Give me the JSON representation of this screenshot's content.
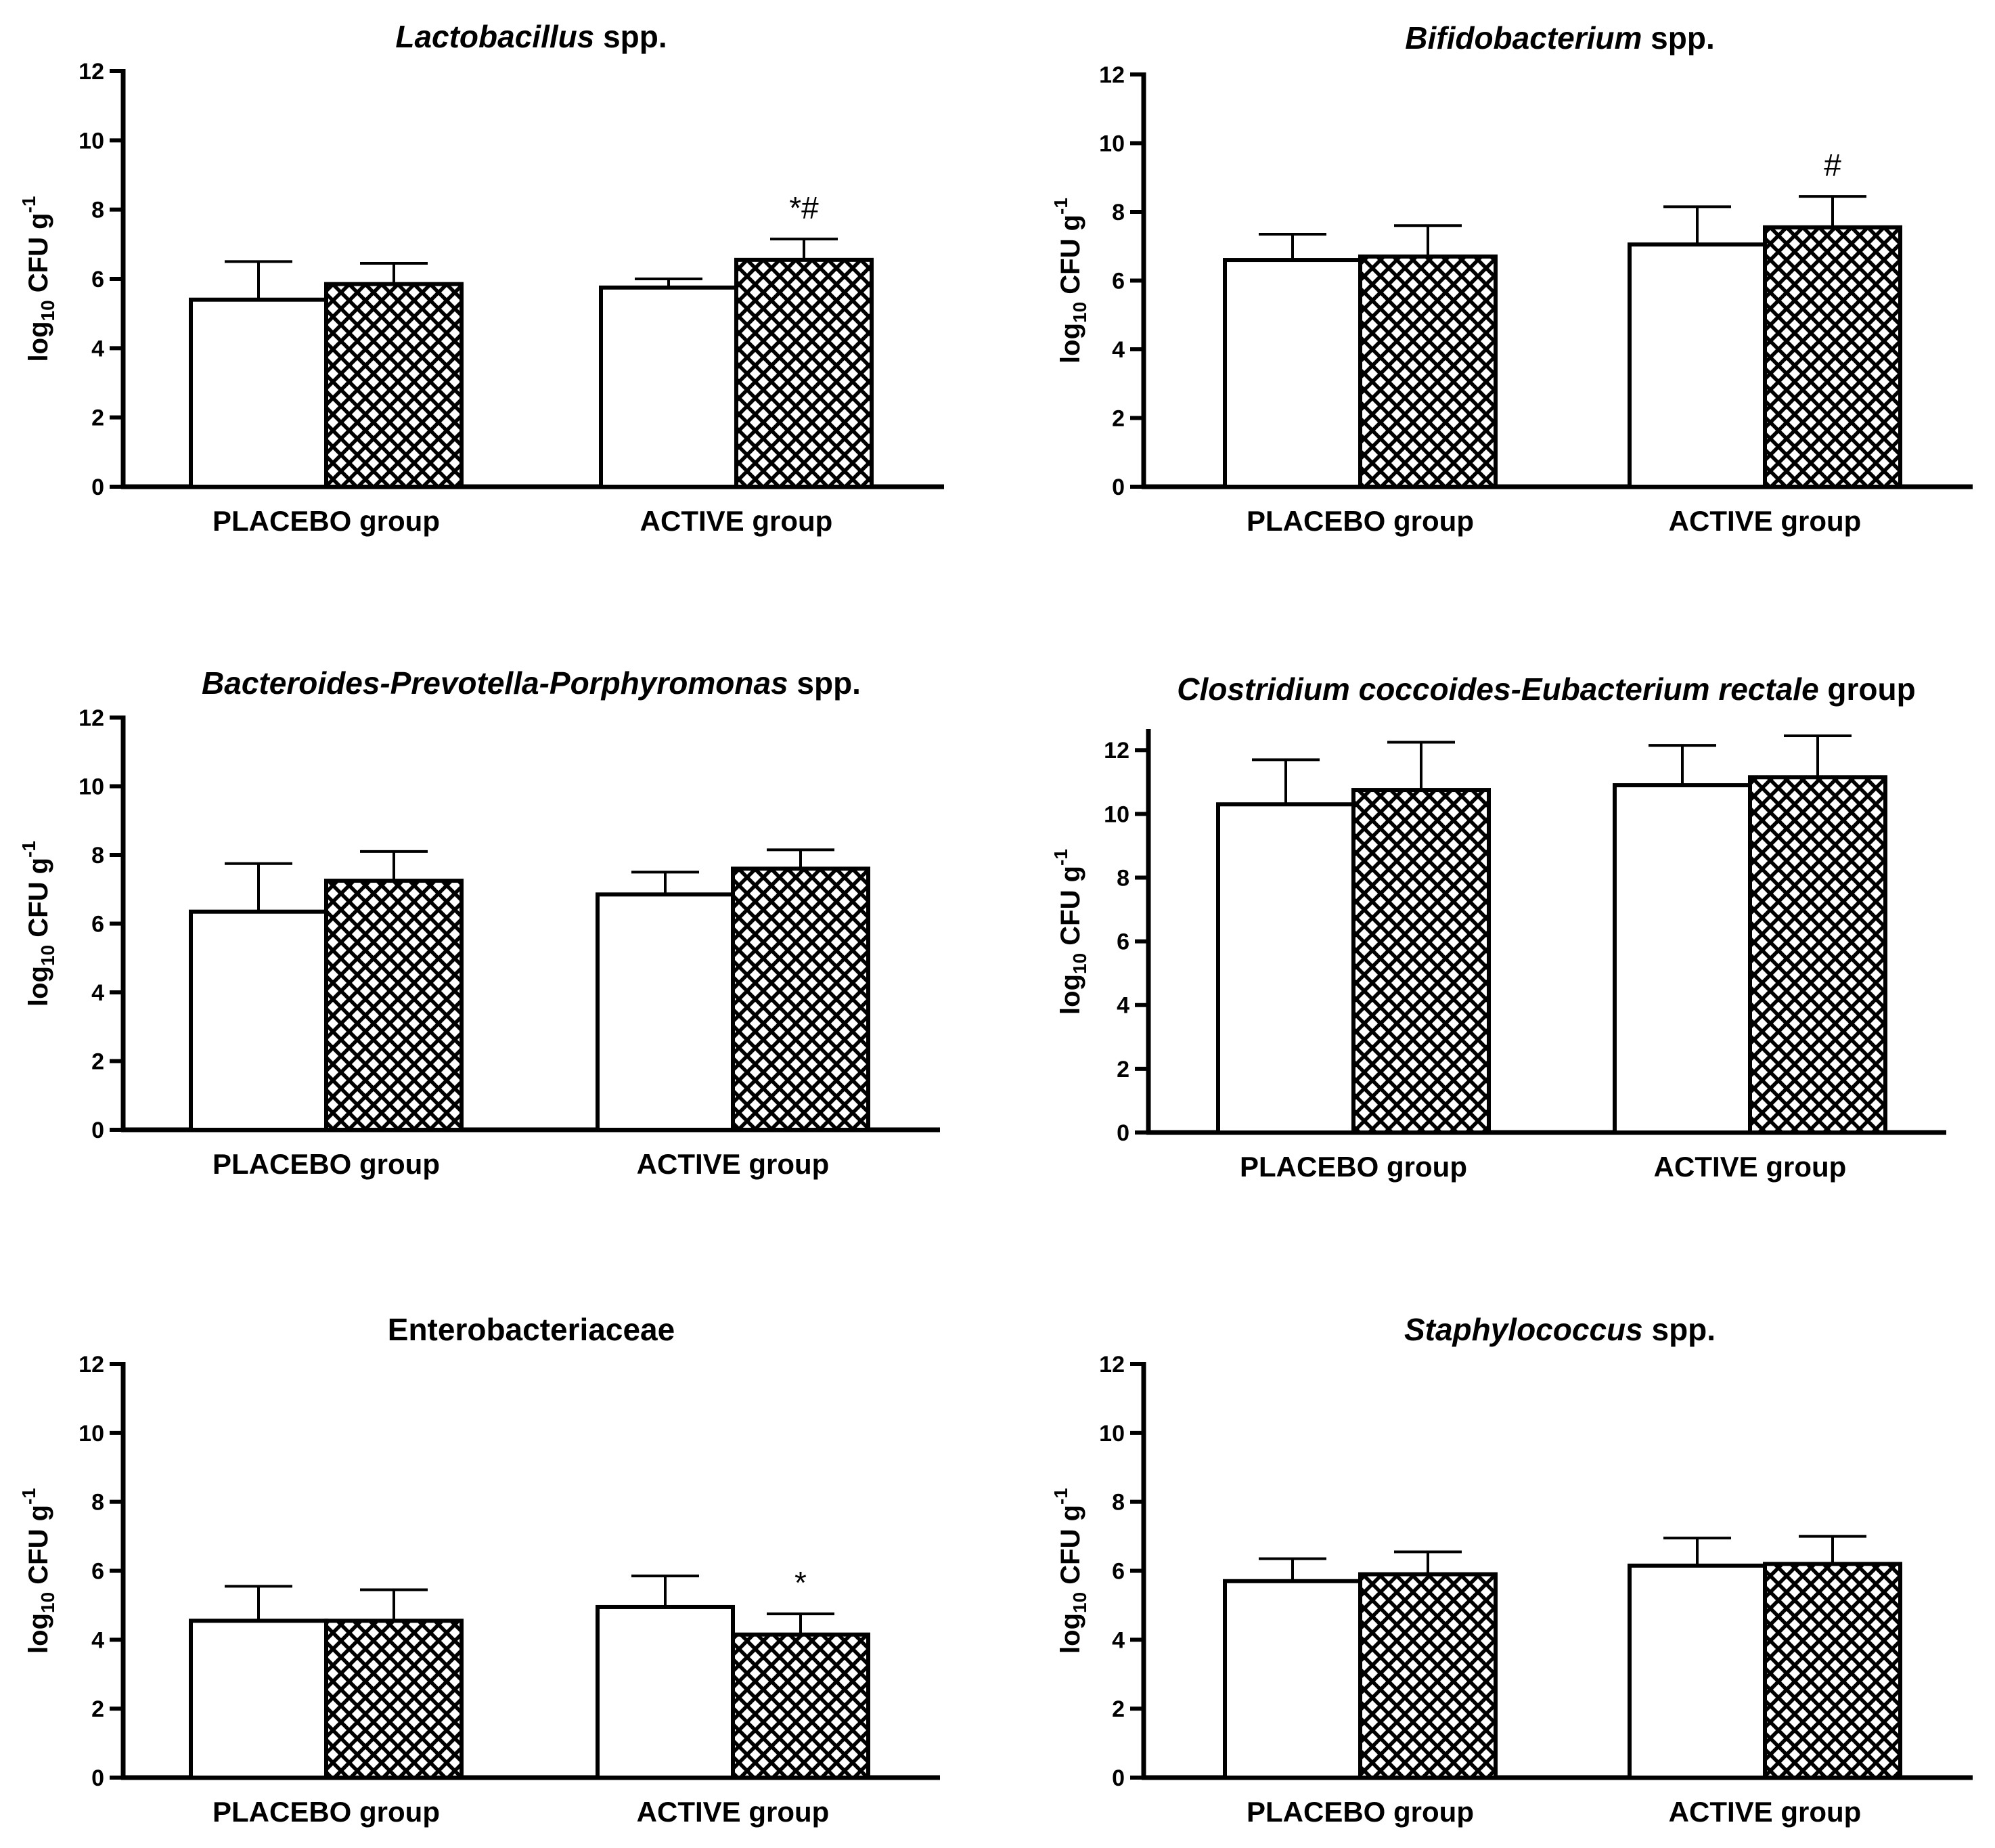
{
  "figure": {
    "legend_shown": false,
    "series_styles": [
      {
        "series_index": 0,
        "fill": "#ffffff",
        "pattern": "none"
      },
      {
        "series_index": 1,
        "fill": "#ffffff",
        "pattern": "crosshatch"
      }
    ]
  },
  "chart_data": [
    {
      "type": "bar",
      "title_parts": [
        {
          "text": "Lactobacillus",
          "italic": true
        },
        {
          "text": " spp.",
          "italic": false
        }
      ],
      "ylabel": {
        "main": "log",
        "sub": "10",
        "rest": " CFU g",
        "sup": "-1"
      },
      "ylim": [
        0,
        12
      ],
      "yticks": [
        0,
        2,
        4,
        6,
        8,
        10,
        12
      ],
      "categories": [
        "PLACEBO group",
        "ACTIVE group"
      ],
      "series": [
        {
          "name": "series-1-open",
          "values": [
            5.4,
            5.75
          ],
          "errors": [
            1.1,
            0.25
          ]
        },
        {
          "name": "series-2-crosshatch",
          "values": [
            5.85,
            6.55
          ],
          "errors": [
            0.6,
            0.6
          ]
        }
      ],
      "annotations": [
        {
          "category": 1,
          "series": 1,
          "text": "*#"
        }
      ]
    },
    {
      "type": "bar",
      "title_parts": [
        {
          "text": "Bifidobacterium",
          "italic": true
        },
        {
          "text": " spp.",
          "italic": false
        }
      ],
      "ylabel": {
        "main": "log",
        "sub": "10",
        "rest": " CFU g",
        "sup": "-1"
      },
      "ylim": [
        0,
        12
      ],
      "yticks": [
        0,
        2,
        4,
        6,
        8,
        10,
        12
      ],
      "categories": [
        "PLACEBO group",
        "ACTIVE group"
      ],
      "series": [
        {
          "name": "series-1-open",
          "values": [
            6.6,
            7.05
          ],
          "errors": [
            0.75,
            1.1
          ]
        },
        {
          "name": "series-2-crosshatch",
          "values": [
            6.7,
            7.55
          ],
          "errors": [
            0.9,
            0.9
          ]
        }
      ],
      "annotations": [
        {
          "category": 1,
          "series": 1,
          "text": "#"
        }
      ]
    },
    {
      "type": "bar",
      "title_parts": [
        {
          "text": "Bacteroides-Prevotella-Porphyromonas",
          "italic": true
        },
        {
          "text": " spp.",
          "italic": false
        }
      ],
      "ylabel": {
        "main": "log",
        "sub": "10",
        "rest": " CFU g",
        "sup": "-1"
      },
      "ylim": [
        0,
        12
      ],
      "yticks": [
        0,
        2,
        4,
        6,
        8,
        10,
        12
      ],
      "categories": [
        "PLACEBO group",
        "ACTIVE group"
      ],
      "series": [
        {
          "name": "series-1-open",
          "values": [
            6.35,
            6.85
          ],
          "errors": [
            1.4,
            0.65
          ]
        },
        {
          "name": "series-2-crosshatch",
          "values": [
            7.25,
            7.6
          ],
          "errors": [
            0.85,
            0.55
          ]
        }
      ],
      "annotations": []
    },
    {
      "type": "bar",
      "title_parts": [
        {
          "text": "Clostridium coccoides-Eubacterium rectale",
          "italic": true
        },
        {
          "text": " group",
          "italic": false
        }
      ],
      "ylabel": {
        "main": "log",
        "sub": "10",
        "rest": " CFU g",
        "sup": "-1"
      },
      "ylim": [
        0,
        12.6
      ],
      "yticks": [
        0,
        2,
        4,
        6,
        8,
        10,
        12
      ],
      "categories": [
        "PLACEBO group",
        "ACTIVE group"
      ],
      "series": [
        {
          "name": "series-1-open",
          "values": [
            10.3,
            10.9
          ],
          "errors": [
            1.4,
            1.25
          ]
        },
        {
          "name": "series-2-crosshatch",
          "values": [
            10.75,
            11.15
          ],
          "errors": [
            1.5,
            1.3
          ]
        }
      ],
      "annotations": []
    },
    {
      "type": "bar",
      "title_parts": [
        {
          "text": "Enterobacteriaceae",
          "italic": false
        }
      ],
      "ylabel": {
        "main": "log",
        "sub": "10",
        "rest": " CFU g",
        "sup": "-1"
      },
      "ylim": [
        0,
        12
      ],
      "yticks": [
        0,
        2,
        4,
        6,
        8,
        10,
        12
      ],
      "categories": [
        "PLACEBO group",
        "ACTIVE group"
      ],
      "series": [
        {
          "name": "series-1-open",
          "values": [
            4.55,
            4.95
          ],
          "errors": [
            1.0,
            0.9
          ]
        },
        {
          "name": "series-2-crosshatch",
          "values": [
            4.55,
            4.15
          ],
          "errors": [
            0.9,
            0.6
          ]
        }
      ],
      "annotations": [
        {
          "category": 1,
          "series": 1,
          "text": "*"
        }
      ]
    },
    {
      "type": "bar",
      "title_parts": [
        {
          "text": "Staphylococcus",
          "italic": true
        },
        {
          "text": " spp.",
          "italic": false
        }
      ],
      "ylabel": {
        "main": "log",
        "sub": "10",
        "rest": " CFU g",
        "sup": "-1"
      },
      "ylim": [
        0,
        12
      ],
      "yticks": [
        0,
        2,
        4,
        6,
        8,
        10,
        12
      ],
      "categories": [
        "PLACEBO group",
        "ACTIVE group"
      ],
      "series": [
        {
          "name": "series-1-open",
          "values": [
            5.7,
            6.15
          ],
          "errors": [
            0.65,
            0.8
          ]
        },
        {
          "name": "series-2-crosshatch",
          "values": [
            5.9,
            6.2
          ],
          "errors": [
            0.65,
            0.8
          ]
        }
      ],
      "annotations": []
    }
  ]
}
